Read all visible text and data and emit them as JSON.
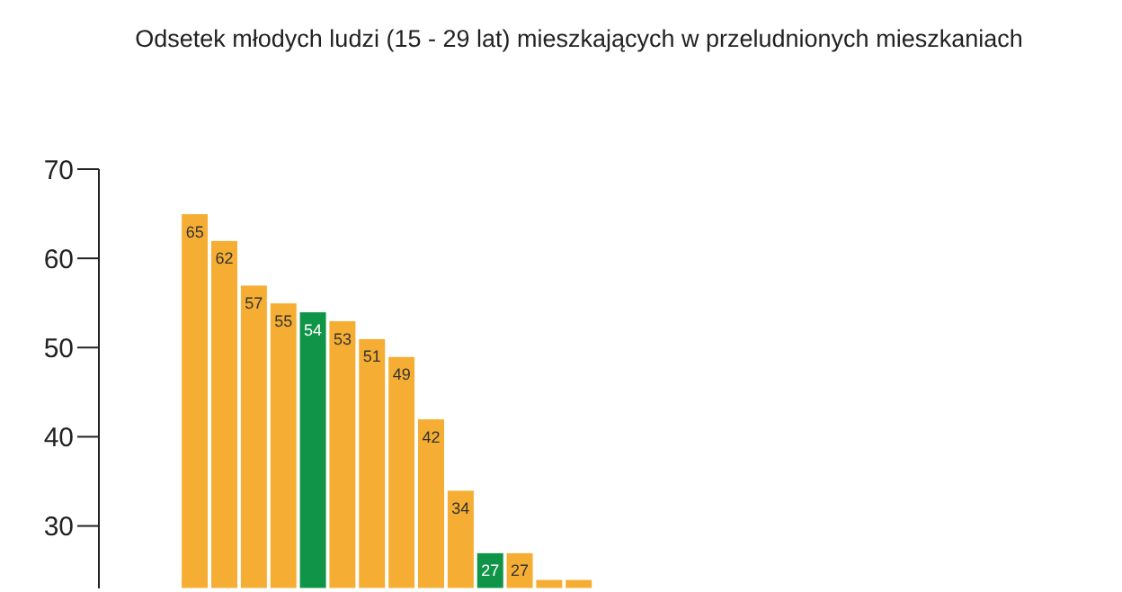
{
  "chart_data": {
    "type": "bar",
    "title": "Odsetek młodych ludzi (15 - 29 lat) mieszkających w przeludnionych mieszkaniach",
    "categories": [
      null,
      null,
      null,
      null,
      null,
      null,
      null,
      null,
      null,
      null,
      null,
      null,
      null,
      null
    ],
    "values": [
      65,
      62,
      57,
      55,
      54,
      53,
      51,
      49,
      42,
      34,
      27,
      27,
      24,
      24
    ],
    "colors": [
      "#f5ae33",
      "#f5ae33",
      "#f5ae33",
      "#f5ae33",
      "#109447",
      "#f5ae33",
      "#f5ae33",
      "#f5ae33",
      "#f5ae33",
      "#f5ae33",
      "#109447",
      "#f5ae33",
      "#f5ae33",
      "#f5ae33"
    ],
    "value_labels": [
      "65",
      "62",
      "57",
      "55",
      "54",
      "53",
      "51",
      "49",
      "42",
      "34",
      "27",
      "27",
      null,
      null
    ],
    "ylim": [
      23,
      70
    ],
    "yticks": [
      30,
      40,
      50,
      60,
      70
    ],
    "grid": false,
    "tick_labels": "y"
  }
}
